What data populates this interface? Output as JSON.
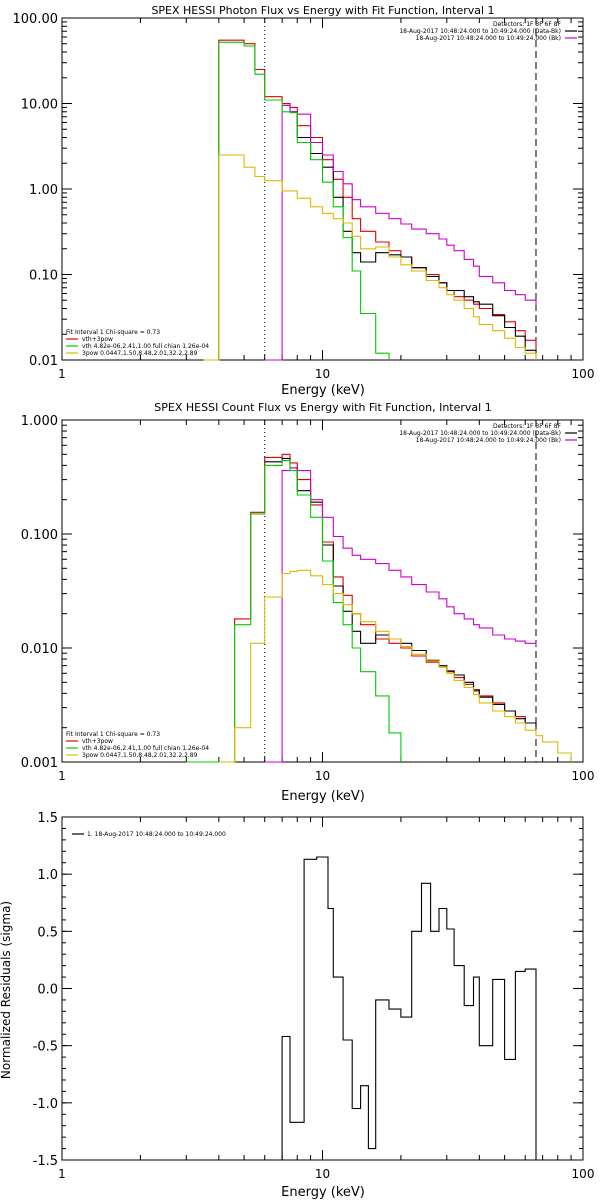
{
  "chart_data": [
    {
      "id": "photon",
      "type": "line",
      "title": "SPEX HESSI Photon Flux vs Energy with Fit Function, Interval 1",
      "xlabel": "Energy (keV)",
      "ylabel": "",
      "xscale": "log",
      "yscale": "log",
      "xlim": [
        1,
        100
      ],
      "ylim": [
        0.01,
        100
      ],
      "xticks": [
        {
          "v": 1,
          "label": "1"
        },
        {
          "v": 10,
          "label": "10"
        },
        {
          "v": 100,
          "label": "100"
        }
      ],
      "yticks": [
        {
          "v": 0.01,
          "label": "0.01"
        },
        {
          "v": 0.1,
          "label": "0.10"
        },
        {
          "v": 1,
          "label": "1.00"
        },
        {
          "v": 10,
          "label": "10.00"
        },
        {
          "v": 100,
          "label": "100.00"
        }
      ],
      "vlines": [
        {
          "x": 6,
          "style": "dotted"
        },
        {
          "x": 66,
          "style": "dashed"
        }
      ],
      "legend_tr": [
        "Detectors: 1F 3F 6F 8F",
        "18-Aug-2017 10:48:24.000 to 10:49:24.000 (Data-Bk)",
        "18-Aug-2017 10:48:24.000 to 10:49:24.000 (Bk)"
      ],
      "legend_bl": [
        "Fit Interval 1   Chi-square = 0.73",
        "vth+3pow",
        "vth 4.82e-06,2.41,1.00  full chian 1.26e-04",
        "3pow 0.0447,1.50,8.48,2.01,32.2,2.89"
      ],
      "series": [
        {
          "name": "vth+3pow",
          "color": "#dd0000",
          "x": [
            3.5,
            4,
            5,
            5.5,
            6,
            7,
            7.5,
            8,
            9,
            10,
            11,
            12,
            13,
            14,
            16,
            18,
            20,
            22,
            25,
            28,
            30,
            32,
            35,
            38,
            40,
            45,
            50,
            55,
            60,
            66
          ],
          "y": [
            0.01,
            55,
            50,
            25,
            12,
            10,
            9,
            5.5,
            4,
            2.2,
            1.3,
            0.8,
            0.45,
            0.32,
            0.24,
            0.19,
            0.16,
            0.12,
            0.1,
            0.08,
            0.065,
            0.055,
            0.05,
            0.045,
            0.04,
            0.034,
            0.028,
            0.022,
            0.017,
            0.013
          ]
        },
        {
          "name": "Data-Bk",
          "color": "#000000",
          "x": [
            7,
            7.5,
            8,
            9,
            10,
            11,
            12,
            13,
            14,
            16,
            18,
            20,
            22,
            25,
            28,
            30,
            32,
            35,
            38,
            40,
            45,
            50,
            55,
            60,
            66
          ],
          "y": [
            9.5,
            8,
            4,
            2.6,
            1.8,
            0.8,
            0.32,
            0.18,
            0.14,
            0.18,
            0.17,
            0.16,
            0.12,
            0.095,
            0.08,
            0.065,
            0.065,
            0.055,
            0.048,
            0.045,
            0.033,
            0.024,
            0.019,
            0.013,
            0.01
          ]
        },
        {
          "name": "Bk",
          "color": "#cc00cc",
          "x": [
            6,
            7,
            7.5,
            8,
            9,
            10,
            11,
            12,
            13,
            14,
            16,
            18,
            20,
            22,
            25,
            28,
            30,
            32,
            35,
            38,
            40,
            45,
            50,
            55,
            60,
            66
          ],
          "y": [
            0.01,
            9.5,
            8,
            7.5,
            3.5,
            2.5,
            1.6,
            1.15,
            0.75,
            0.62,
            0.52,
            0.45,
            0.39,
            0.34,
            0.3,
            0.26,
            0.22,
            0.19,
            0.15,
            0.125,
            0.095,
            0.08,
            0.065,
            0.058,
            0.05,
            0.044
          ]
        },
        {
          "name": "vth",
          "color": "#00cc00",
          "x": [
            3.5,
            4,
            5,
            5.5,
            6,
            7,
            7.5,
            8,
            9,
            10,
            11,
            12,
            13,
            14,
            16,
            18
          ],
          "y": [
            0.01,
            52,
            47,
            22,
            11,
            8,
            7.8,
            3.5,
            2.2,
            1.2,
            0.62,
            0.27,
            0.11,
            0.035,
            0.012,
            0.01
          ]
        },
        {
          "name": "3pow",
          "color": "#ddbb00",
          "x": [
            3.5,
            4,
            5,
            5.5,
            6,
            7,
            8,
            9,
            10,
            11,
            12,
            13,
            14,
            16,
            18,
            20,
            22,
            25,
            28,
            30,
            32,
            35,
            38,
            40,
            45,
            50,
            55,
            60,
            66
          ],
          "y": [
            0.01,
            2.5,
            1.8,
            1.4,
            1.25,
            0.95,
            0.78,
            0.62,
            0.52,
            0.45,
            0.4,
            0.28,
            0.2,
            0.21,
            0.16,
            0.13,
            0.11,
            0.085,
            0.07,
            0.058,
            0.05,
            0.04,
            0.032,
            0.026,
            0.022,
            0.018,
            0.014,
            0.012,
            0.01
          ]
        }
      ]
    },
    {
      "id": "count",
      "type": "line",
      "title": "SPEX HESSI Count Flux vs Energy with Fit Function, Interval 1",
      "xlabel": "Energy (keV)",
      "ylabel": "",
      "xscale": "log",
      "yscale": "log",
      "xlim": [
        1,
        100
      ],
      "ylim": [
        0.001,
        1
      ],
      "xticks": [
        {
          "v": 1,
          "label": "1"
        },
        {
          "v": 10,
          "label": "10"
        },
        {
          "v": 100,
          "label": "100"
        }
      ],
      "yticks": [
        {
          "v": 0.001,
          "label": "0.001"
        },
        {
          "v": 0.01,
          "label": "0.010"
        },
        {
          "v": 0.1,
          "label": "0.100"
        },
        {
          "v": 1,
          "label": "1.000"
        }
      ],
      "vlines": [
        {
          "x": 6,
          "style": "dotted"
        },
        {
          "x": 66,
          "style": "dashed"
        }
      ],
      "legend_tr": [
        "Detectors: 1F 3F 6F 8F",
        "18-Aug-2017 10:48:24.000 to 10:49:24.000 (Data-Bk)",
        "18-Aug-2017 10:48:24.000 to 10:49:24.000 (Bk)"
      ],
      "legend_bl": [
        "Fit Interval 1   Chi-square = 0.73",
        "vth+3pow",
        "vth 4.82e-06,2.41,1.00  full chian 1.26e-04",
        "3pow 0.0447,1.50,8.48,2.01,32.2,2.89"
      ],
      "series": [
        {
          "name": "vth+3pow",
          "color": "#dd0000",
          "x": [
            3,
            4,
            4.6,
            5.3,
            6,
            7,
            7.5,
            8,
            9,
            10,
            11,
            12,
            13,
            14,
            16,
            18,
            20,
            22,
            25,
            28,
            30,
            32,
            35,
            38,
            40,
            45,
            50,
            55,
            60,
            66
          ],
          "y": [
            0.001,
            0.001,
            0.018,
            0.155,
            0.47,
            0.5,
            0.42,
            0.3,
            0.18,
            0.085,
            0.042,
            0.029,
            0.02,
            0.016,
            0.012,
            0.011,
            0.01,
            0.0085,
            0.0075,
            0.0068,
            0.0062,
            0.0055,
            0.0048,
            0.0042,
            0.0038,
            0.0033,
            0.0028,
            0.0025,
            0.0022,
            0.002
          ]
        },
        {
          "name": "Data-Bk",
          "color": "#000000",
          "x": [
            6,
            7,
            7.5,
            8,
            9,
            10,
            11,
            12,
            13,
            14,
            16,
            18,
            20,
            22,
            25,
            28,
            30,
            32,
            35,
            38,
            40,
            45,
            50,
            55,
            60,
            66
          ],
          "y": [
            0.43,
            0.46,
            0.38,
            0.24,
            0.19,
            0.08,
            0.035,
            0.021,
            0.014,
            0.011,
            0.013,
            0.012,
            0.011,
            0.0095,
            0.0078,
            0.007,
            0.0063,
            0.0058,
            0.005,
            0.0043,
            0.0037,
            0.0032,
            0.0028,
            0.0024,
            0.0022,
            0.002
          ]
        },
        {
          "name": "Bk",
          "color": "#cc00cc",
          "x": [
            6,
            7,
            7.5,
            8,
            9,
            10,
            11,
            12,
            13,
            14,
            16,
            18,
            20,
            22,
            25,
            28,
            30,
            32,
            35,
            38,
            40,
            45,
            50,
            55,
            60,
            66
          ],
          "y": [
            0.001,
            0.36,
            0.38,
            0.36,
            0.2,
            0.14,
            0.095,
            0.075,
            0.065,
            0.06,
            0.055,
            0.048,
            0.042,
            0.036,
            0.031,
            0.027,
            0.023,
            0.02,
            0.018,
            0.016,
            0.015,
            0.013,
            0.012,
            0.0115,
            0.011,
            0.0105
          ]
        },
        {
          "name": "vth",
          "color": "#00cc00",
          "x": [
            3,
            4,
            4.6,
            5.3,
            6,
            7,
            7.5,
            8,
            9,
            10,
            11,
            12,
            13,
            14,
            16,
            18,
            20
          ],
          "y": [
            0.001,
            0.001,
            0.016,
            0.15,
            0.4,
            0.44,
            0.36,
            0.22,
            0.14,
            0.058,
            0.025,
            0.016,
            0.01,
            0.0062,
            0.0038,
            0.0018,
            0.001
          ]
        },
        {
          "name": "3pow",
          "color": "#ddbb00",
          "x": [
            4,
            4.6,
            5.3,
            6,
            7,
            7.5,
            8,
            9,
            10,
            11,
            12,
            13,
            14,
            16,
            18,
            20,
            22,
            25,
            28,
            30,
            32,
            35,
            38,
            40,
            45,
            50,
            55,
            60,
            66,
            70,
            80,
            90
          ],
          "y": [
            0.001,
            0.002,
            0.011,
            0.028,
            0.045,
            0.047,
            0.048,
            0.043,
            0.036,
            0.03,
            0.024,
            0.02,
            0.017,
            0.014,
            0.012,
            0.0103,
            0.0088,
            0.0077,
            0.0068,
            0.006,
            0.0052,
            0.0045,
            0.0039,
            0.0033,
            0.0028,
            0.0025,
            0.0022,
            0.0019,
            0.0017,
            0.0015,
            0.0012,
            0.001
          ]
        }
      ]
    },
    {
      "id": "resid",
      "type": "line",
      "title": "",
      "xlabel": "Energy (keV)",
      "ylabel": "Normalized Residuals (sigma)",
      "xscale": "log",
      "yscale": "linear",
      "xlim": [
        1,
        100
      ],
      "ylim": [
        -1.5,
        1.5
      ],
      "xticks": [
        {
          "v": 1,
          "label": "1"
        },
        {
          "v": 10,
          "label": "10"
        },
        {
          "v": 100,
          "label": "100"
        }
      ],
      "yticks": [
        {
          "v": -1.5,
          "label": "-1.5"
        },
        {
          "v": -1,
          "label": "-1.0"
        },
        {
          "v": -0.5,
          "label": "-0.5"
        },
        {
          "v": 0,
          "label": "0.0"
        },
        {
          "v": 0.5,
          "label": "0.5"
        },
        {
          "v": 1,
          "label": "1.0"
        },
        {
          "v": 1.5,
          "label": "1.5"
        }
      ],
      "vlines": [],
      "legend_tr": [],
      "legend_bl": [],
      "legend_tl": [
        "1. 18-Aug-2017 10:48:24.000 to 10:49:24.000"
      ],
      "series": [
        {
          "name": "1. 18-Aug-2017 10:48:24.000 to 10:49:24.000",
          "color": "#000000",
          "x": [
            6,
            7,
            7.5,
            8.5,
            9.5,
            10.5,
            11,
            12,
            13,
            14,
            15,
            16,
            18,
            20,
            22,
            24,
            26,
            28,
            30,
            32,
            35,
            38,
            40,
            45,
            50,
            55,
            60,
            66
          ],
          "y": [
            -1.5,
            -0.42,
            -1.17,
            1.13,
            1.15,
            0.7,
            0.1,
            -0.45,
            -1.05,
            -0.85,
            -1.4,
            -0.1,
            -0.18,
            -0.25,
            0.5,
            0.92,
            0.5,
            0.7,
            0.52,
            0.2,
            -0.15,
            0.1,
            -0.5,
            0.08,
            -0.62,
            0.15,
            0.17,
            -1.5
          ]
        }
      ]
    }
  ]
}
